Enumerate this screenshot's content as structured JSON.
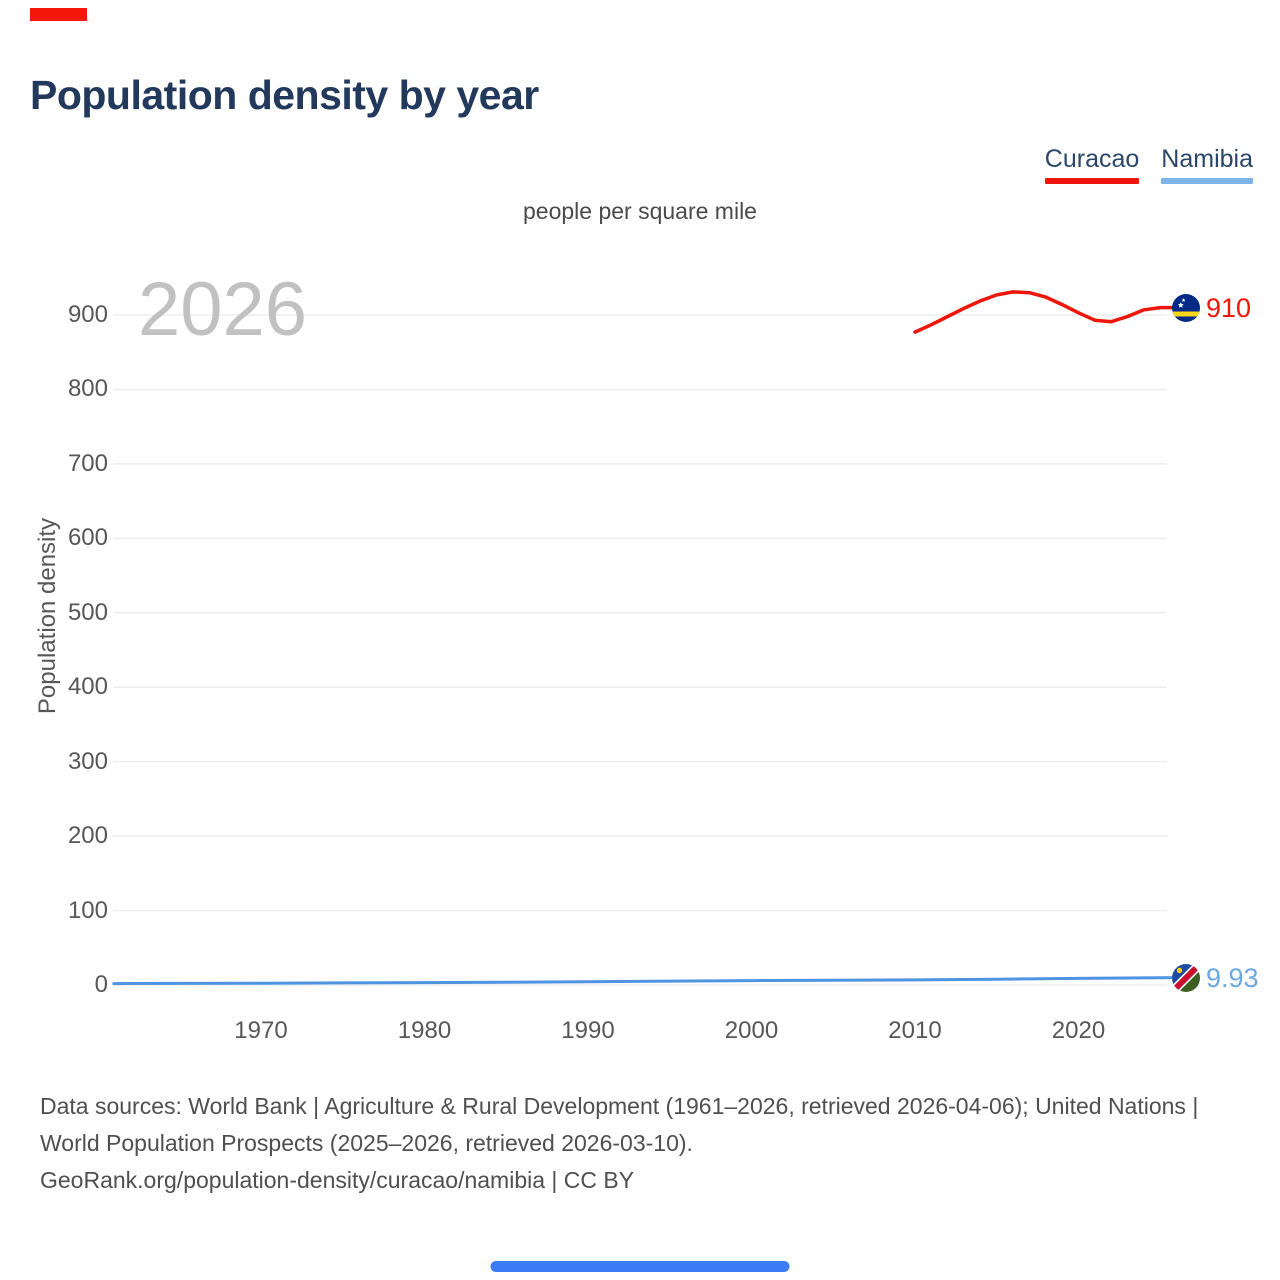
{
  "page": {
    "title": "Population density by year",
    "subtitle": "people per square mile",
    "watermark_year": "2026",
    "footer": {
      "sources_line": "Data sources: World Bank | Agriculture & Rural Development (1961–2026, retrieved 2026-04-06); United Nations | World Population Prospects (2025–2026, retrieved 2026-03-10).",
      "attribution_line": "GeoRank.org/population-density/curacao/namibia | CC BY"
    }
  },
  "legend": [
    {
      "label": "Curacao",
      "color": "#ee1509"
    },
    {
      "label": "Namibia",
      "color": "#7db4e8"
    }
  ],
  "decorations": {
    "top_bar_color": "#f5170c",
    "bottom_bar_color": "#3c7cf5"
  },
  "chart_data": {
    "type": "line",
    "title": "Population density by year",
    "subtitle": "people per square mile",
    "xlabel": "",
    "ylabel": "Population density",
    "unit": "people per square mile",
    "xlim": [
      1961,
      2026
    ],
    "ylim": [
      0,
      960
    ],
    "x_ticks": [
      1970,
      1980,
      1990,
      2000,
      2010,
      2020
    ],
    "y_ticks": [
      0,
      100,
      200,
      300,
      400,
      500,
      600,
      700,
      800,
      900
    ],
    "grid": true,
    "legend_position": "top-right",
    "watermark": "2026",
    "series": [
      {
        "name": "Curacao",
        "color": "#ee1509",
        "label_color": "#ee1509",
        "end_label": "910",
        "x": [
          2010,
          2011,
          2012,
          2013,
          2014,
          2015,
          2016,
          2017,
          2018,
          2019,
          2020,
          2021,
          2022,
          2023,
          2024,
          2025,
          2026
        ],
        "values": [
          877,
          887,
          898,
          909,
          919,
          927,
          931,
          930,
          924,
          914,
          903,
          893,
          891,
          898,
          907,
          910,
          910
        ]
      },
      {
        "name": "Namibia",
        "color": "#4e94e0",
        "label_color": "#6aa9e4",
        "end_label": "9.93",
        "x": [
          1961,
          1965,
          1970,
          1975,
          1980,
          1985,
          1990,
          1995,
          2000,
          2005,
          2010,
          2015,
          2020,
          2023,
          2026
        ],
        "values": [
          1.9,
          2.1,
          2.4,
          2.8,
          3.2,
          3.7,
          4.4,
          5.2,
          5.9,
          6.4,
          6.9,
          7.8,
          8.8,
          9.4,
          9.93
        ]
      }
    ]
  }
}
